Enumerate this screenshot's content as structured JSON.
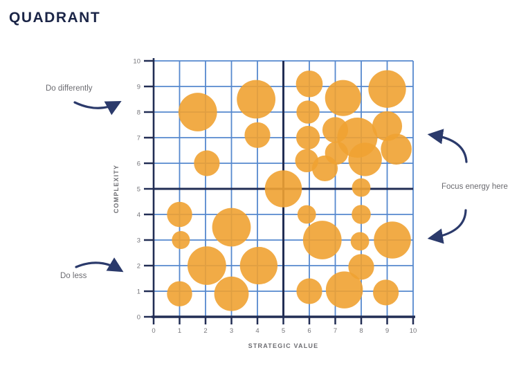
{
  "title": "QUADRANT",
  "annotations": {
    "do_differently": "Do differently",
    "do_less": "Do less",
    "focus_energy": "Focus energy here"
  },
  "chart_data": {
    "type": "scatter",
    "subtype": "quadrant-bubble",
    "title": "QUADRANT",
    "xlabel": "STRATEGIC VALUE",
    "ylabel": "COMPLEXITY",
    "xlim": [
      0,
      10
    ],
    "ylim": [
      0,
      10
    ],
    "x_ticks": [
      0,
      1,
      2,
      3,
      4,
      5,
      6,
      7,
      8,
      9,
      10
    ],
    "y_ticks": [
      0,
      1,
      2,
      3,
      4,
      5,
      6,
      7,
      8,
      9,
      10
    ],
    "grid": true,
    "legend": false,
    "quadrant_dividers": {
      "x": 5,
      "y": 5
    },
    "bubbles": [
      {
        "x": 1.7,
        "y": 8.0,
        "r": 0.75
      },
      {
        "x": 3.95,
        "y": 8.5,
        "r": 0.75
      },
      {
        "x": 4.0,
        "y": 7.1,
        "r": 0.5
      },
      {
        "x": 2.05,
        "y": 6.0,
        "r": 0.5
      },
      {
        "x": 5.0,
        "y": 5.0,
        "r": 0.72
      },
      {
        "x": 6.0,
        "y": 9.1,
        "r": 0.52
      },
      {
        "x": 7.3,
        "y": 8.55,
        "r": 0.7
      },
      {
        "x": 9.0,
        "y": 8.9,
        "r": 0.73
      },
      {
        "x": 5.95,
        "y": 8.0,
        "r": 0.45
      },
      {
        "x": 5.95,
        "y": 7.0,
        "r": 0.46
      },
      {
        "x": 5.9,
        "y": 6.1,
        "r": 0.45
      },
      {
        "x": 7.0,
        "y": 7.3,
        "r": 0.5
      },
      {
        "x": 7.85,
        "y": 7.0,
        "r": 0.78
      },
      {
        "x": 9.0,
        "y": 7.45,
        "r": 0.58
      },
      {
        "x": 9.35,
        "y": 6.55,
        "r": 0.6
      },
      {
        "x": 8.15,
        "y": 6.15,
        "r": 0.65
      },
      {
        "x": 6.6,
        "y": 5.8,
        "r": 0.5
      },
      {
        "x": 7.05,
        "y": 6.4,
        "r": 0.45
      },
      {
        "x": 8.0,
        "y": 5.05,
        "r": 0.36
      },
      {
        "x": 1.0,
        "y": 4.0,
        "r": 0.49
      },
      {
        "x": 1.05,
        "y": 3.0,
        "r": 0.35
      },
      {
        "x": 3.0,
        "y": 3.5,
        "r": 0.75
      },
      {
        "x": 2.05,
        "y": 2.0,
        "r": 0.75
      },
      {
        "x": 4.05,
        "y": 2.0,
        "r": 0.73
      },
      {
        "x": 1.0,
        "y": 0.9,
        "r": 0.49
      },
      {
        "x": 3.0,
        "y": 0.9,
        "r": 0.67
      },
      {
        "x": 5.9,
        "y": 4.0,
        "r": 0.36
      },
      {
        "x": 8.0,
        "y": 4.0,
        "r": 0.37
      },
      {
        "x": 6.5,
        "y": 3.0,
        "r": 0.75
      },
      {
        "x": 7.95,
        "y": 2.95,
        "r": 0.36
      },
      {
        "x": 9.2,
        "y": 3.0,
        "r": 0.72
      },
      {
        "x": 8.0,
        "y": 1.95,
        "r": 0.5
      },
      {
        "x": 7.35,
        "y": 1.05,
        "r": 0.72
      },
      {
        "x": 6.0,
        "y": 1.0,
        "r": 0.5
      },
      {
        "x": 8.95,
        "y": 0.95,
        "r": 0.5
      }
    ]
  },
  "colors": {
    "bubble": "#F0A232",
    "grid": "#5588CE",
    "axis": "#212D54",
    "title": "#1B2547",
    "muted_text": "#75757A",
    "arrow": "#2B3A6B"
  }
}
